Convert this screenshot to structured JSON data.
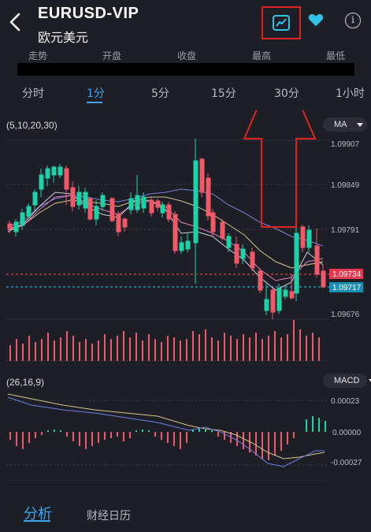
{
  "header": {
    "title": "EURUSD-VIP",
    "subtitle": "欧元美元"
  },
  "stats_labels": [
    "走势",
    "开盘",
    "收盘",
    "最高",
    "最低"
  ],
  "timeframe_tabs": [
    "分时",
    "1分",
    "5分",
    "15分",
    "30分",
    "1小时"
  ],
  "active_tab": "1分",
  "indicators": {
    "ma_params": "(5,10,20,30)",
    "ma_label": "MA",
    "macd_params": "(26,16,9)",
    "macd_label": "MACD"
  },
  "price_axis": [
    "1.09907",
    "1.09849",
    "1.09791",
    "1.09676"
  ],
  "price_badges": {
    "red": "1.09734",
    "cyan": "1.09717"
  },
  "macd_axis": [
    "0.00023",
    "0.00000",
    "-0.00027"
  ],
  "bottom_tabs": [
    "分析",
    "财经日历"
  ],
  "colors": {
    "accent": "#3aa6f0",
    "up": "#1fd1a6",
    "down": "#ef5a68",
    "annotation": "#e0231f",
    "background": "#1e1f26"
  }
}
